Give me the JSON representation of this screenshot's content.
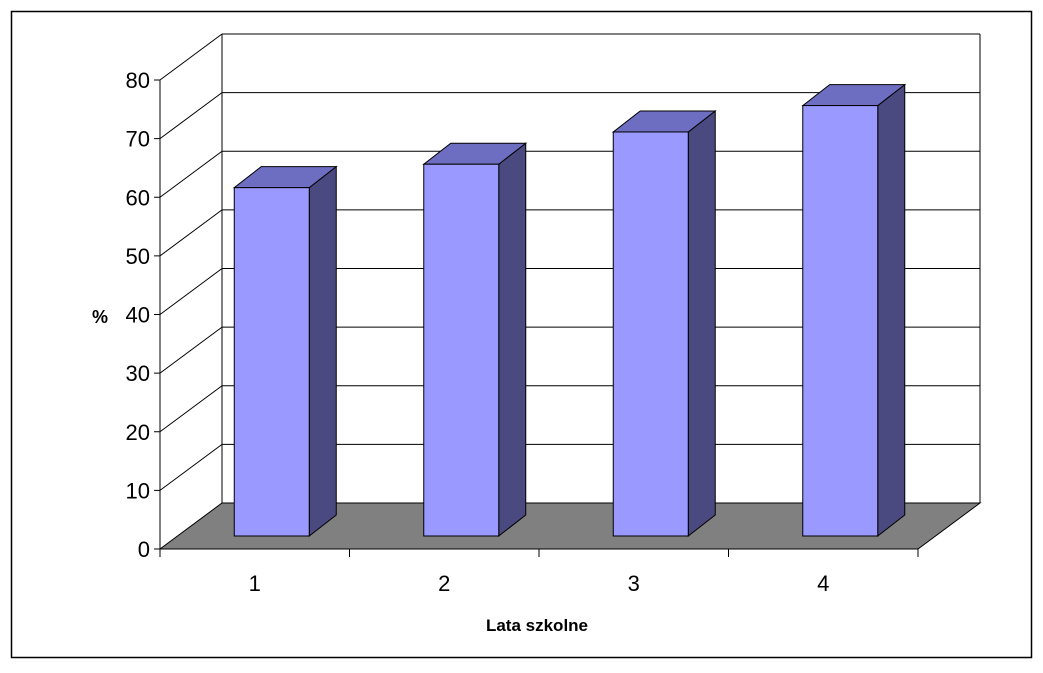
{
  "chart_data": {
    "type": "bar",
    "categories": [
      "1",
      "2",
      "3",
      "4"
    ],
    "values": [
      63,
      67,
      72.5,
      77
    ],
    "xlabel": "Lata szkolne",
    "ylabel": "%",
    "ylim": [
      0,
      80
    ],
    "yticks": [
      "0",
      "10",
      "20",
      "30",
      "40",
      "50",
      "60",
      "70",
      "80"
    ],
    "grid": true,
    "style": "3d-column",
    "colors": {
      "bar_front": "#9999ff",
      "bar_top": "#6d6dc2",
      "bar_side": "#4b4a80",
      "floor": "#808080",
      "gridline": "#000000"
    }
  }
}
